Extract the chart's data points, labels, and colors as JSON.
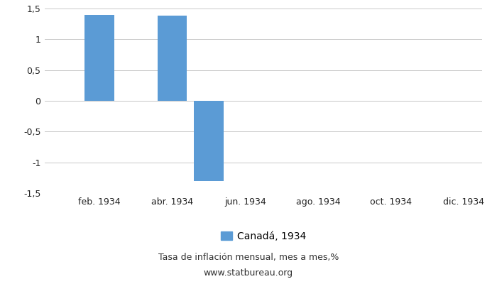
{
  "months_x": [
    1,
    2,
    3,
    4,
    5,
    6,
    7,
    8,
    9,
    10,
    11,
    12
  ],
  "bar_data": [
    {
      "x": 2,
      "v": 1.4
    },
    {
      "x": 4,
      "v": 1.38
    },
    {
      "x": 5,
      "v": -1.3
    }
  ],
  "bar_color": "#5b9bd5",
  "ylim": [
    -1.5,
    1.5
  ],
  "yticks": [
    -1.5,
    -1.0,
    -0.5,
    0.0,
    0.5,
    1.0,
    1.5
  ],
  "ytick_labels": [
    "-1,5",
    "-1",
    "-0,5",
    "0",
    "0,5",
    "1",
    "1,5"
  ],
  "xtick_positions": [
    2,
    4,
    6,
    8,
    10,
    12
  ],
  "xtick_labels": [
    "feb. 1934",
    "abr. 1934",
    "jun. 1934",
    "ago. 1934",
    "oct. 1934",
    "dic. 1934"
  ],
  "xlim": [
    0.5,
    12.5
  ],
  "legend_label": "Canadá, 1934",
  "subtitle1": "Tasa de inflación mensual, mes a mes,%",
  "subtitle2": "www.statbureau.org",
  "background_color": "#ffffff",
  "grid_color": "#c8c8c8",
  "bar_width": 0.8
}
